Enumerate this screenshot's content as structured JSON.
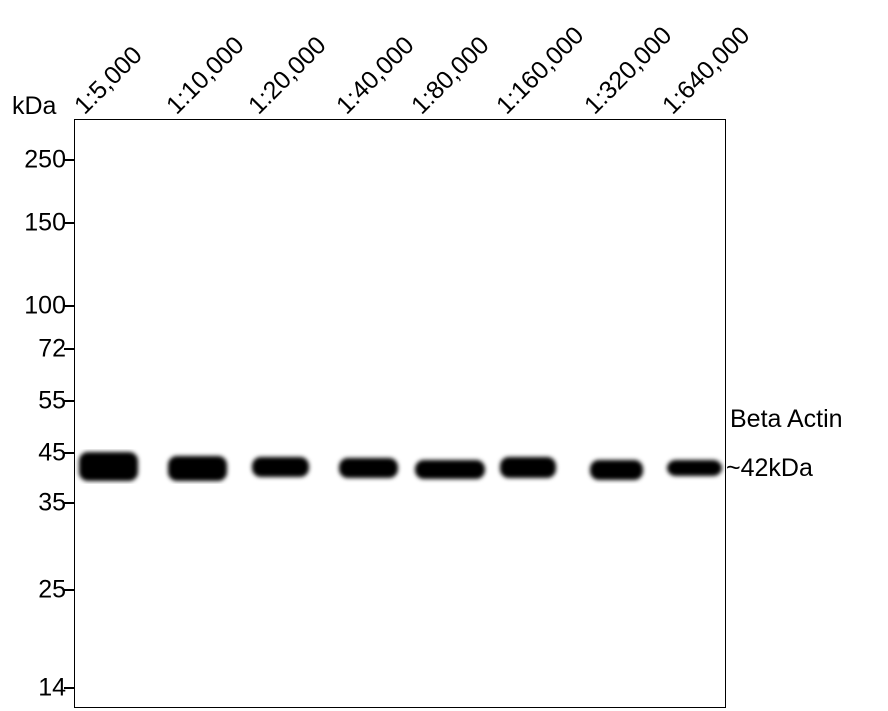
{
  "unit_label": "kDa",
  "markers": [
    "250",
    "150",
    "100",
    "72",
    "55",
    "45",
    "35",
    "25",
    "14"
  ],
  "lanes": [
    "1:5,000",
    "1:10,000",
    "1:20,000",
    "1:40,000",
    "1:80,000",
    "1:160,000",
    "1:320,000",
    "1:640,000"
  ],
  "target_label": "Beta Actin",
  "size_label": "~42kDa",
  "band_color": "#000000"
}
